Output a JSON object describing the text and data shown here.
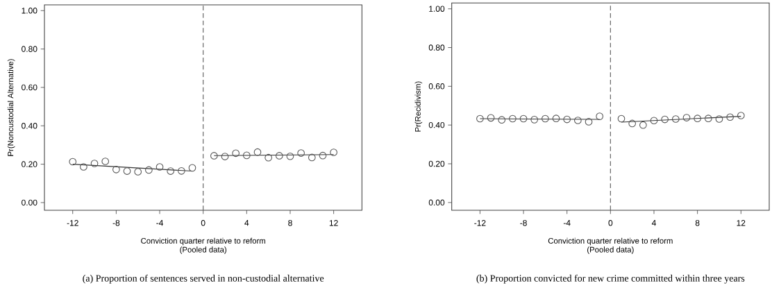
{
  "chart_data": [
    {
      "type": "scatter",
      "title": "(a)  Proportion of sentences served in non-custodial alternative",
      "xlabel": "Conviction quarter relative to reform",
      "ylabel": "Pr(Noncustodial Alternative)",
      "annotations": [
        "(Pooled data)"
      ],
      "xlim": [
        -14.6,
        14.6
      ],
      "ylim": [
        -0.04,
        1.03
      ],
      "xticks": [
        -12,
        -8,
        -4,
        0,
        4,
        8,
        12
      ],
      "yticks": [
        {
          "value": 0,
          "label": "0.00"
        },
        {
          "value": 0.2,
          "label": "0.20"
        },
        {
          "value": 0.4,
          "label": "0.40"
        },
        {
          "value": 0.6,
          "label": "0.60"
        },
        {
          "value": 0.8,
          "label": "0.80"
        },
        {
          "value": 1,
          "label": "1.00"
        }
      ],
      "ref_lines": [
        {
          "axis": "x",
          "value": 0,
          "color": "#666666",
          "line_style": "dashed"
        }
      ],
      "series": [
        {
          "marker": "circle",
          "color": "#555555",
          "x": [
            -12,
            -11,
            -10,
            -9,
            -8,
            -7,
            -6,
            -5,
            -4,
            -3,
            -2,
            -1
          ],
          "values": [
            0.213,
            0.186,
            0.204,
            0.215,
            0.172,
            0.164,
            0.161,
            0.17,
            0.186,
            0.164,
            0.165,
            0.181
          ]
        },
        {
          "marker": "circle",
          "color": "#555555",
          "x": [
            1,
            2,
            3,
            4,
            5,
            6,
            7,
            8,
            9,
            10,
            11,
            12
          ],
          "values": [
            0.244,
            0.24,
            0.257,
            0.246,
            0.263,
            0.234,
            0.244,
            0.241,
            0.258,
            0.235,
            0.245,
            0.262
          ]
        },
        {
          "type": "line",
          "marker": "none",
          "line_style": "solid",
          "color": "#333333",
          "x": [
            -12,
            -1
          ],
          "values": [
            0.2,
            0.164
          ]
        },
        {
          "type": "line",
          "marker": "none",
          "line_style": "solid",
          "color": "#333333",
          "x": [
            1,
            12
          ],
          "values": [
            0.245,
            0.25
          ]
        }
      ]
    },
    {
      "type": "scatter",
      "title": "(b) Proportion convicted for new crime committed within three years",
      "xlabel": "Conviction quarter relative to reform",
      "ylabel": "Pr(Recidivism)",
      "annotations": [
        "(Pooled data)"
      ],
      "xlim": [
        -14.6,
        14.6
      ],
      "ylim": [
        -0.04,
        1.03
      ],
      "xticks": [
        -12,
        -8,
        -4,
        0,
        4,
        8,
        12
      ],
      "yticks": [
        {
          "value": 0,
          "label": "0.00"
        },
        {
          "value": 0.2,
          "label": "0.20"
        },
        {
          "value": 0.4,
          "label": "0.40"
        },
        {
          "value": 0.6,
          "label": "0.60"
        },
        {
          "value": 0.8,
          "label": "0.80"
        },
        {
          "value": 1,
          "label": "1.00"
        }
      ],
      "ref_lines": [
        {
          "axis": "x",
          "value": 0,
          "color": "#666666",
          "line_style": "dashed"
        }
      ],
      "series": [
        {
          "marker": "circle",
          "color": "#555555",
          "x": [
            -12,
            -11,
            -10,
            -9,
            -8,
            -7,
            -6,
            -5,
            -4,
            -3,
            -2,
            -1
          ],
          "values": [
            0.433,
            0.437,
            0.427,
            0.433,
            0.433,
            0.428,
            0.433,
            0.434,
            0.429,
            0.424,
            0.417,
            0.445
          ]
        },
        {
          "marker": "circle",
          "color": "#555555",
          "x": [
            1,
            2,
            3,
            4,
            5,
            6,
            7,
            8,
            9,
            10,
            11,
            12
          ],
          "values": [
            0.433,
            0.408,
            0.4,
            0.423,
            0.429,
            0.431,
            0.438,
            0.434,
            0.434,
            0.431,
            0.441,
            0.449
          ]
        },
        {
          "type": "line",
          "marker": "none",
          "line_style": "solid",
          "color": "#333333",
          "x": [
            -12,
            -1
          ],
          "values": [
            0.433,
            0.429
          ]
        },
        {
          "type": "line",
          "marker": "none",
          "line_style": "solid",
          "color": "#333333",
          "x": [
            1,
            12
          ],
          "values": [
            0.415,
            0.445
          ]
        }
      ]
    }
  ]
}
